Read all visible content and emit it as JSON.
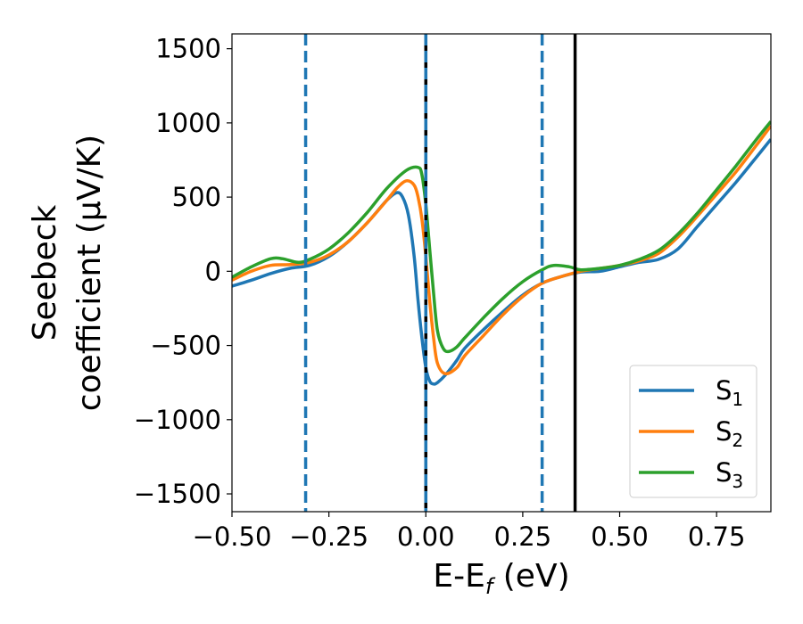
{
  "chart_data": {
    "type": "line",
    "xlabel_main": "E-E",
    "xlabel_sub": "f",
    "xlabel_unit": " (eV)",
    "ylabel_line1": "Seebeck",
    "ylabel_line2": "coefficient  (μV/K)",
    "xlim": [
      -0.5,
      0.89
    ],
    "ylim": [
      -1620,
      1600
    ],
    "xticks": [
      {
        "value": -0.5,
        "label": "−0.50"
      },
      {
        "value": -0.25,
        "label": "−0.25"
      },
      {
        "value": 0.0,
        "label": "0.00"
      },
      {
        "value": 0.25,
        "label": "0.25"
      },
      {
        "value": 0.5,
        "label": "0.50"
      },
      {
        "value": 0.75,
        "label": "0.75"
      }
    ],
    "yticks": [
      {
        "value": 1500,
        "label": "1500"
      },
      {
        "value": 1000,
        "label": "1000"
      },
      {
        "value": 500,
        "label": "500"
      },
      {
        "value": 0,
        "label": "0"
      },
      {
        "value": -500,
        "label": "−500"
      },
      {
        "value": -1000,
        "label": "−1000"
      },
      {
        "value": -1500,
        "label": "−1500"
      }
    ],
    "vlines": [
      {
        "x": -0.31,
        "color": "#1f77b4",
        "style": "dashed"
      },
      {
        "x": 0.0,
        "color": "#000000",
        "style": "solid"
      },
      {
        "x": 0.0,
        "color": "#1f77b4",
        "style": "dashed"
      },
      {
        "x": 0.3,
        "color": "#1f77b4",
        "style": "dashed"
      },
      {
        "x": 0.385,
        "color": "#000000",
        "style": "solid"
      }
    ],
    "legend_position": "bottom-right",
    "grid": false,
    "series": [
      {
        "name": "S",
        "sub": "1",
        "color": "#1f77b4",
        "x": [
          -0.5,
          -0.45,
          -0.4,
          -0.35,
          -0.3,
          -0.25,
          -0.2,
          -0.15,
          -0.1,
          -0.075,
          -0.06,
          -0.045,
          -0.03,
          -0.02,
          -0.01,
          0.0,
          0.01,
          0.02,
          0.03,
          0.05,
          0.08,
          0.1,
          0.15,
          0.2,
          0.25,
          0.3,
          0.35,
          0.4,
          0.45,
          0.5,
          0.55,
          0.6,
          0.65,
          0.7,
          0.75,
          0.8,
          0.85,
          0.89
        ],
        "y": [
          -100,
          -60,
          -15,
          20,
          40,
          100,
          200,
          330,
          480,
          530,
          500,
          380,
          100,
          -200,
          -450,
          -650,
          -740,
          -760,
          -750,
          -700,
          -600,
          -520,
          -390,
          -270,
          -160,
          -80,
          -35,
          -5,
          0,
          30,
          60,
          80,
          150,
          300,
          450,
          600,
          760,
          890
        ]
      },
      {
        "name": "S",
        "sub": "2",
        "color": "#ff7f0e",
        "x": [
          -0.5,
          -0.45,
          -0.4,
          -0.35,
          -0.3,
          -0.25,
          -0.2,
          -0.15,
          -0.1,
          -0.075,
          -0.05,
          -0.03,
          -0.02,
          -0.01,
          0.0,
          0.01,
          0.02,
          0.03,
          0.05,
          0.08,
          0.1,
          0.15,
          0.2,
          0.25,
          0.3,
          0.35,
          0.4,
          0.45,
          0.5,
          0.55,
          0.6,
          0.65,
          0.7,
          0.75,
          0.8,
          0.85,
          0.89
        ],
        "y": [
          -60,
          0,
          40,
          45,
          60,
          110,
          200,
          330,
          480,
          560,
          610,
          580,
          500,
          350,
          100,
          -200,
          -450,
          -620,
          -690,
          -650,
          -570,
          -430,
          -290,
          -170,
          -80,
          -35,
          0,
          20,
          40,
          70,
          120,
          230,
          370,
          520,
          670,
          840,
          980
        ]
      },
      {
        "name": "S",
        "sub": "3",
        "color": "#2ca02c",
        "x": [
          -0.5,
          -0.45,
          -0.4,
          -0.37,
          -0.33,
          -0.3,
          -0.25,
          -0.2,
          -0.15,
          -0.1,
          -0.05,
          -0.02,
          -0.01,
          0.0,
          0.01,
          0.02,
          0.03,
          0.045,
          0.06,
          0.08,
          0.1,
          0.15,
          0.2,
          0.25,
          0.3,
          0.33,
          0.37,
          0.4,
          0.45,
          0.5,
          0.55,
          0.6,
          0.65,
          0.7,
          0.75,
          0.8,
          0.85,
          0.89
        ],
        "y": [
          -40,
          30,
          85,
          85,
          60,
          80,
          150,
          260,
          400,
          560,
          680,
          700,
          650,
          450,
          150,
          -150,
          -400,
          -520,
          -540,
          -510,
          -450,
          -310,
          -180,
          -70,
          10,
          40,
          30,
          10,
          20,
          40,
          80,
          140,
          250,
          390,
          550,
          710,
          880,
          1010
        ]
      }
    ]
  }
}
